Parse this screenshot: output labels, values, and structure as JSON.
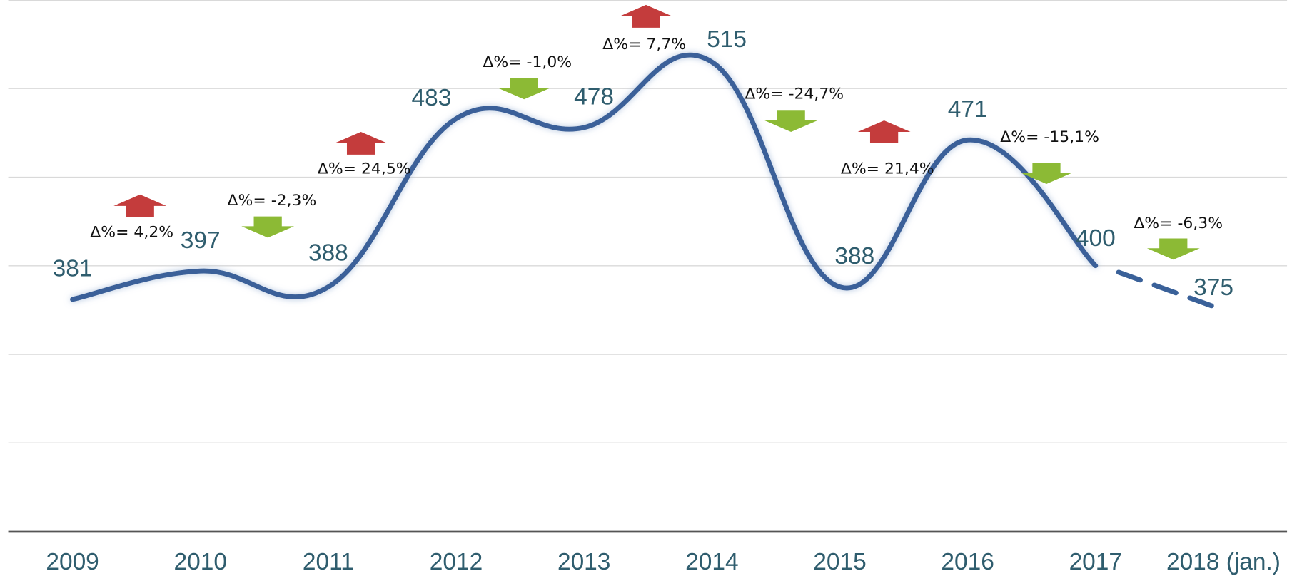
{
  "chart_data": {
    "type": "line",
    "categories": [
      "2009",
      "2010",
      "2011",
      "2012",
      "2013",
      "2014",
      "2015",
      "2016",
      "2017",
      "2018 (jan.)"
    ],
    "series": [
      {
        "color": "#3a6199",
        "values": [
          381,
          397,
          388,
          483,
          478,
          515,
          388,
          471,
          400,
          375
        ],
        "dashed_last_segment": true
      }
    ],
    "ylim": [
      250,
      550
    ],
    "yticks": [
      250,
      300,
      350,
      400,
      450,
      500,
      550
    ],
    "grid": true,
    "annotations": [
      {
        "text": "Δ%= 4,2%",
        "direction": "up"
      },
      {
        "text": "Δ%= -2,3%",
        "direction": "down"
      },
      {
        "text": "Δ%= 24,5%",
        "direction": "up"
      },
      {
        "text": "Δ%= -1,0%",
        "direction": "down"
      },
      {
        "text": "Δ%= 7,7%",
        "direction": "up"
      },
      {
        "text": "Δ%= -24,7%",
        "direction": "down"
      },
      {
        "text": "Δ%= 21,4%",
        "direction": "up"
      },
      {
        "text": "Δ%= -15,1%",
        "direction": "down"
      },
      {
        "text": "Δ%= -6,3%",
        "direction": "down"
      }
    ]
  }
}
